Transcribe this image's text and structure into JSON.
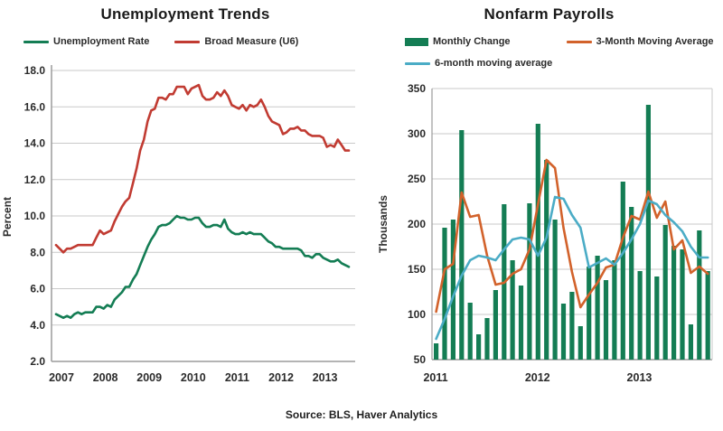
{
  "source": {
    "text": "Source: BLS, Haver Analytics"
  },
  "chart_data": [
    {
      "type": "line",
      "title": "Unemployment Trends",
      "ylabel": "Percent",
      "ylim": [
        2.0,
        18.0
      ],
      "yticks": [
        "18.0",
        "16.0",
        "14.0",
        "12.0",
        "10.0",
        "8.0",
        "6.0",
        "4.0",
        "2.0"
      ],
      "x_years": [
        "2007",
        "2008",
        "2009",
        "2010",
        "2011",
        "2012",
        "2013"
      ],
      "grid": "horizontal",
      "legend_position": "top",
      "legend": [
        {
          "label": "Unemployment Rate",
          "color": "#147d54",
          "swatch": "line"
        },
        {
          "label": "Broad Measure (U6)",
          "color": "#c13b32",
          "swatch": "line"
        }
      ],
      "series": [
        {
          "name": "Unemployment Rate",
          "type": "line",
          "color": "#147d54",
          "values": [
            4.6,
            4.5,
            4.4,
            4.5,
            4.4,
            4.6,
            4.7,
            4.6,
            4.7,
            4.7,
            4.7,
            5.0,
            5.0,
            4.9,
            5.1,
            5.0,
            5.4,
            5.6,
            5.8,
            6.1,
            6.1,
            6.5,
            6.8,
            7.3,
            7.8,
            8.3,
            8.7,
            9.0,
            9.4,
            9.5,
            9.5,
            9.6,
            9.8,
            10.0,
            9.9,
            9.9,
            9.8,
            9.8,
            9.9,
            9.9,
            9.6,
            9.4,
            9.4,
            9.5,
            9.5,
            9.4,
            9.8,
            9.3,
            9.1,
            9.0,
            9.0,
            9.1,
            9.0,
            9.1,
            9.0,
            9.0,
            9.0,
            8.8,
            8.6,
            8.5,
            8.3,
            8.3,
            8.2,
            8.2,
            8.2,
            8.2,
            8.2,
            8.1,
            7.8,
            7.8,
            7.7,
            7.9,
            7.9,
            7.7,
            7.6,
            7.5,
            7.5,
            7.6,
            7.4,
            7.3,
            7.2
          ]
        },
        {
          "name": "Broad Measure (U6)",
          "type": "line",
          "color": "#c13b32",
          "values": [
            8.4,
            8.2,
            8.0,
            8.2,
            8.2,
            8.3,
            8.4,
            8.4,
            8.4,
            8.4,
            8.4,
            8.8,
            9.2,
            9.0,
            9.1,
            9.2,
            9.7,
            10.1,
            10.5,
            10.8,
            11.0,
            11.8,
            12.6,
            13.6,
            14.2,
            15.2,
            15.8,
            15.9,
            16.5,
            16.5,
            16.4,
            16.7,
            16.7,
            17.1,
            17.1,
            17.1,
            16.7,
            17.0,
            17.1,
            17.2,
            16.6,
            16.4,
            16.4,
            16.5,
            16.8,
            16.6,
            16.9,
            16.6,
            16.1,
            16.0,
            15.9,
            16.1,
            15.8,
            16.1,
            16.0,
            16.1,
            16.4,
            16.0,
            15.5,
            15.2,
            15.1,
            15.0,
            14.5,
            14.6,
            14.8,
            14.8,
            14.9,
            14.7,
            14.7,
            14.5,
            14.4,
            14.4,
            14.4,
            14.3,
            13.8,
            13.9,
            13.8,
            14.2,
            13.9,
            13.6,
            13.6
          ]
        }
      ]
    },
    {
      "type": "bar",
      "title": "Nonfarm Payrolls",
      "ylabel": "Thousands",
      "ylim": [
        50,
        350
      ],
      "yticks": [
        "350",
        "300",
        "250",
        "200",
        "150",
        "100",
        "50"
      ],
      "x_years": [
        "2011",
        "2012",
        "2013"
      ],
      "grid": "horizontal",
      "legend_position": "top",
      "legend": [
        {
          "label": "Monthly Change",
          "color": "#147d54",
          "swatch": "rect"
        },
        {
          "label": "3-Month Moving Average",
          "color": "#d2622b",
          "swatch": "line"
        },
        {
          "label": "6-month moving average",
          "color": "#4bacc6",
          "swatch": "line"
        }
      ],
      "series": [
        {
          "name": "Monthly Change",
          "type": "bar",
          "color": "#147d54",
          "values": [
            68,
            196,
            205,
            304,
            113,
            78,
            96,
            127,
            222,
            160,
            132,
            223,
            311,
            271,
            205,
            112,
            125,
            87,
            153,
            165,
            138,
            160,
            247,
            219,
            148,
            332,
            142,
            199,
            176,
            172,
            89,
            193,
            148
          ]
        },
        {
          "name": "3-Month Moving Average",
          "type": "line",
          "color": "#d2622b",
          "values": [
            103,
            150,
            156,
            235,
            208,
            210,
            165,
            133,
            135,
            145,
            150,
            172,
            222,
            271,
            262,
            196,
            147,
            108,
            122,
            135,
            152,
            155,
            185,
            209,
            205,
            236,
            207,
            225,
            172,
            182,
            146,
            153,
            145
          ]
        },
        {
          "name": "6-month moving average",
          "type": "line",
          "color": "#4bacc6",
          "values": [
            73,
            95,
            120,
            143,
            160,
            165,
            163,
            160,
            172,
            183,
            185,
            183,
            165,
            185,
            230,
            228,
            210,
            196,
            152,
            157,
            162,
            155,
            168,
            183,
            200,
            226,
            222,
            210,
            202,
            192,
            175,
            163,
            163
          ]
        }
      ]
    }
  ]
}
